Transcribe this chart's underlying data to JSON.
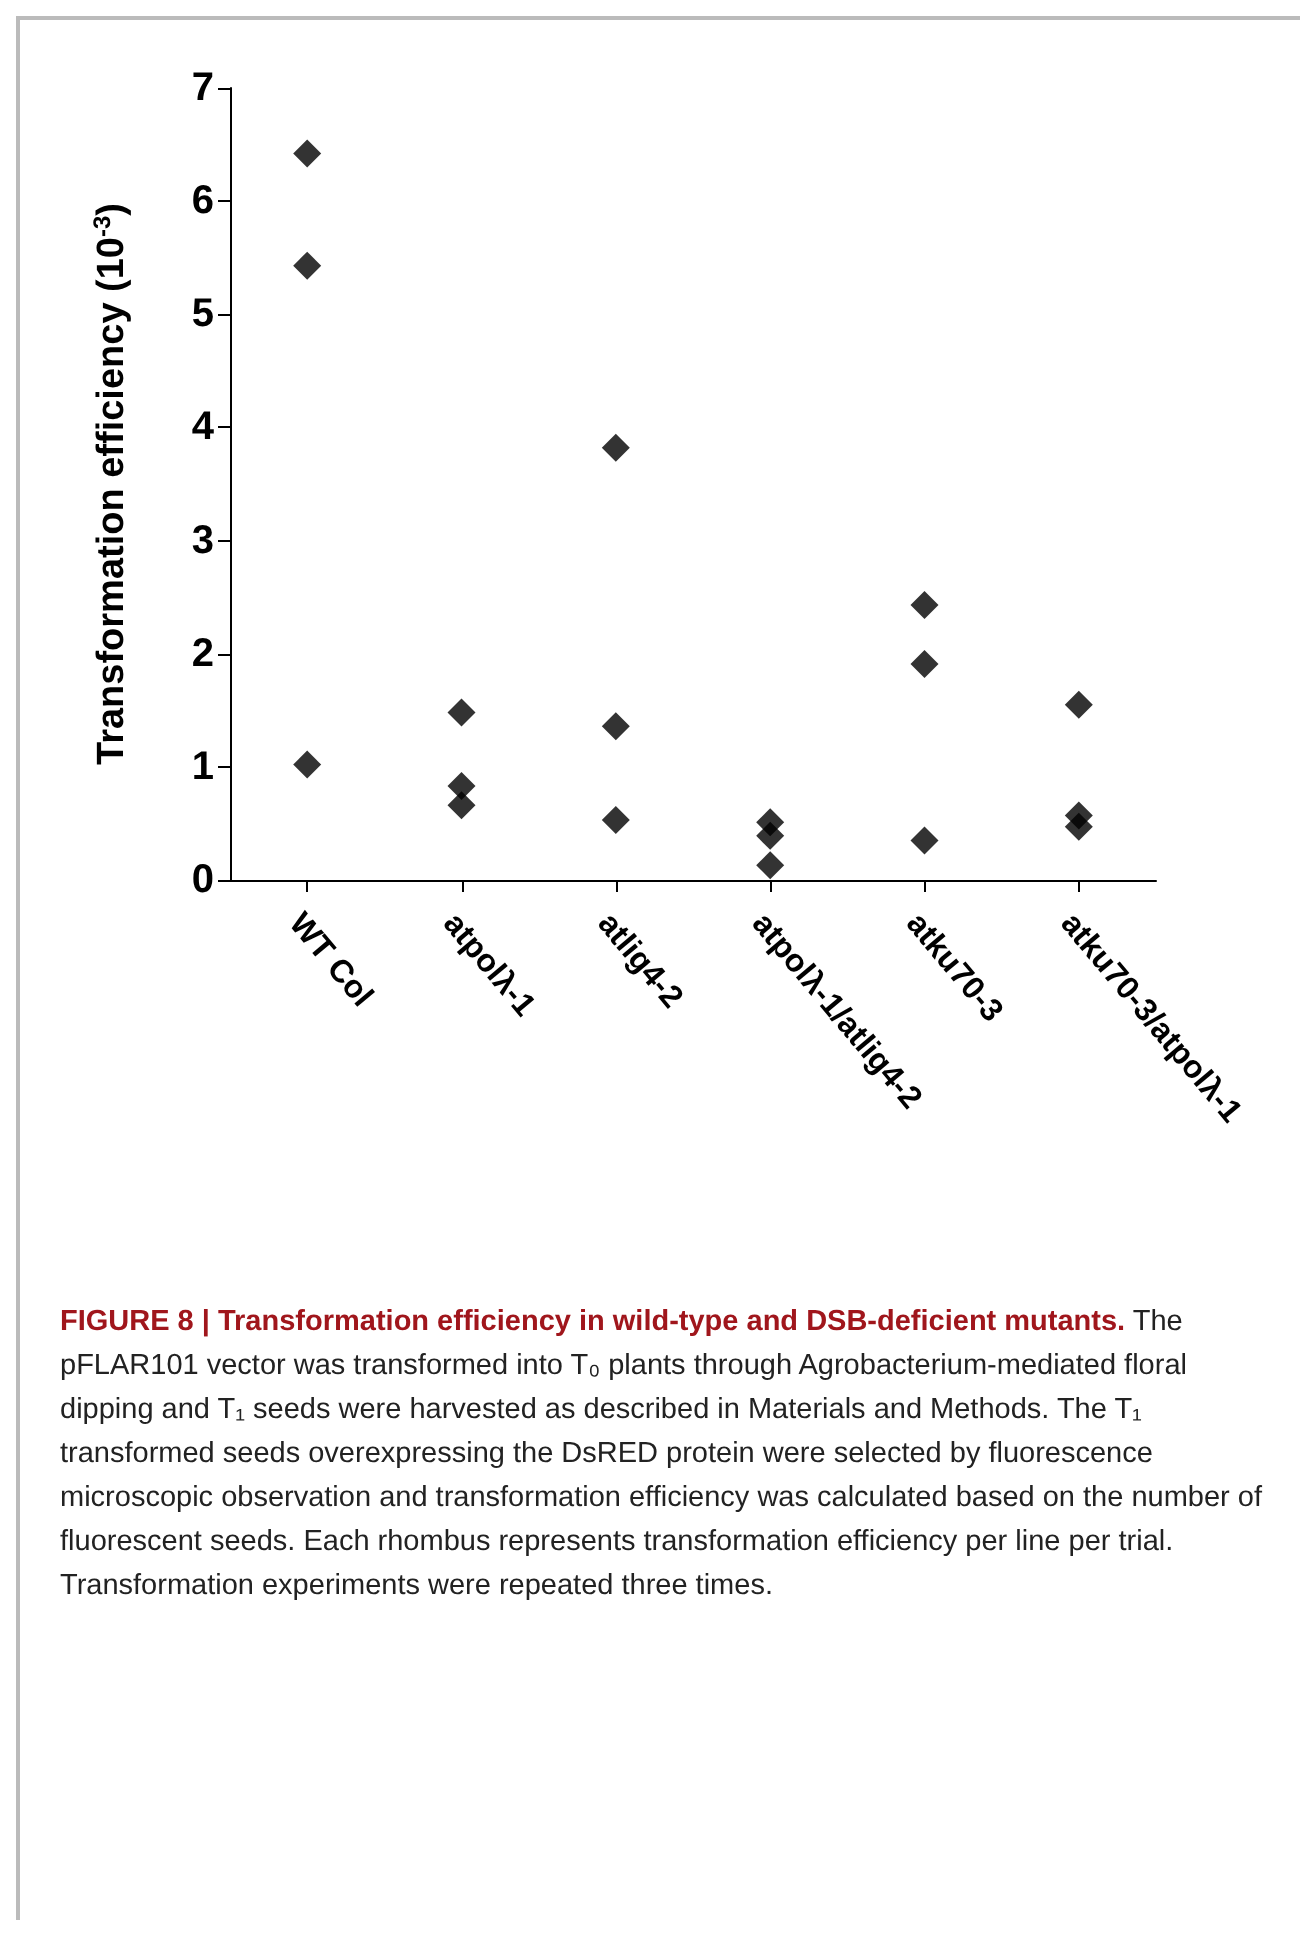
{
  "chart_data": {
    "type": "scatter",
    "title": "FIGURE 8 | Transformation efficiency in wild-type and DSB-deficient mutants.",
    "annotations": [
      "The pFLAR101 vector was transformed into T₀ plants through Agrobacterium-mediated floral dipping and T₁ seeds were harvested as described in Materials and Methods. The T₁ transformed seeds overexpressing the DsRED protein were selected by fluorescence microscopic observation and transformation efficiency was calculated based on the number of fluorescent seeds. Each rhombus represents transformation efficiency per line per trial. Transformation experiments were repeated three times."
    ],
    "ylabel": "Transformation efficiency (10$^{-3}$)",
    "categories": [
      "WT Col",
      "atpolλ-1",
      "atlig4-2",
      "atpolλ-1/atlig4-2",
      "atku70-3",
      "atku70-3/atpolλ-1"
    ],
    "series": [
      {
        "color": "#000000",
        "x": [
          "WT Col",
          "WT Col",
          "WT Col",
          "atpolλ-1",
          "atpolλ-1",
          "atpolλ-1",
          "atlig4-2",
          "atlig4-2",
          "atlig4-2",
          "atpolλ-1/atlig4-2",
          "atpolλ-1/atlig4-2",
          "atpolλ-1/atlig4-2",
          "atku70-3",
          "atku70-3",
          "atku70-3",
          "atku70-3/atpolλ-1",
          "atku70-3/atpolλ-1",
          "atku70-3/atpolλ-1"
        ],
        "values": [
          6.42,
          5.43,
          1.02,
          1.48,
          0.83,
          0.66,
          3.82,
          1.36,
          0.53,
          0.51,
          0.39,
          0.13,
          2.43,
          1.91,
          0.35,
          1.55,
          0.57,
          0.47
        ]
      }
    ],
    "ylim": [
      0,
      7
    ],
    "yticks": [
      0,
      1,
      2,
      3,
      4,
      5,
      6,
      7
    ],
    "grid": false,
    "marker": "diamond"
  }
}
